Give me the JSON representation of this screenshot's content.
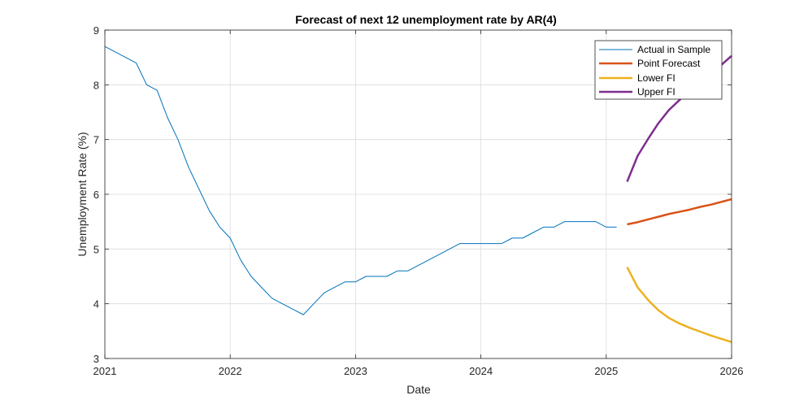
{
  "chart_data": {
    "type": "line",
    "title": "Forecast of next 12 unemployment rate by AR(4)",
    "xlabel": "Date",
    "ylabel": "Unemployment Rate (%)",
    "xlim": [
      "2021-01",
      "2026-01"
    ],
    "ylim": [
      3,
      9
    ],
    "x_ticks": [
      "2021",
      "2022",
      "2023",
      "2024",
      "2025",
      "2026"
    ],
    "y_ticks": [
      "3",
      "4",
      "5",
      "6",
      "7",
      "8",
      "9"
    ],
    "grid": true,
    "legend_position": "top-right",
    "series": [
      {
        "name": "Actual in Sample",
        "color": "#0072BD",
        "line_width": "thin",
        "x": [
          "2021-01",
          "2021-02",
          "2021-03",
          "2021-04",
          "2021-05",
          "2021-06",
          "2021-07",
          "2021-08",
          "2021-09",
          "2021-10",
          "2021-11",
          "2021-12",
          "2022-01",
          "2022-02",
          "2022-03",
          "2022-04",
          "2022-05",
          "2022-06",
          "2022-07",
          "2022-08",
          "2022-09",
          "2022-10",
          "2022-11",
          "2022-12",
          "2023-01",
          "2023-02",
          "2023-03",
          "2023-04",
          "2023-05",
          "2023-06",
          "2023-07",
          "2023-08",
          "2023-09",
          "2023-10",
          "2023-11",
          "2023-12",
          "2024-01",
          "2024-02",
          "2024-03",
          "2024-04",
          "2024-05",
          "2024-06",
          "2024-07",
          "2024-08",
          "2024-09",
          "2024-10",
          "2024-11",
          "2024-12",
          "2025-01",
          "2025-02"
        ],
        "y": [
          8.7,
          8.6,
          8.5,
          8.4,
          8.0,
          7.9,
          7.4,
          7.0,
          6.5,
          6.1,
          5.7,
          5.4,
          5.2,
          4.8,
          4.5,
          4.3,
          4.1,
          4.0,
          3.9,
          3.8,
          4.0,
          4.2,
          4.3,
          4.4,
          4.4,
          4.5,
          4.5,
          4.5,
          4.6,
          4.6,
          4.7,
          4.8,
          4.9,
          5.0,
          5.1,
          5.1,
          5.1,
          5.1,
          5.1,
          5.2,
          5.2,
          5.3,
          5.4,
          5.4,
          5.5,
          5.5,
          5.5,
          5.5,
          5.4,
          5.4
        ]
      },
      {
        "name": "Point Forecast",
        "color": "#D95319",
        "line_width": "thick",
        "x": [
          "2025-03",
          "2025-04",
          "2025-05",
          "2025-06",
          "2025-07",
          "2025-08",
          "2025-09",
          "2025-10",
          "2025-11",
          "2025-12",
          "2026-01"
        ],
        "y": [
          5.45,
          5.49,
          5.54,
          5.59,
          5.64,
          5.68,
          5.72,
          5.77,
          5.81,
          5.86,
          5.91
        ]
      },
      {
        "name": "Lower FI",
        "color": "#EDB120",
        "line_width": "thick",
        "x": [
          "2025-03",
          "2025-04",
          "2025-05",
          "2025-06",
          "2025-07",
          "2025-08",
          "2025-09",
          "2025-10",
          "2025-11",
          "2025-12",
          "2026-01"
        ],
        "y": [
          4.67,
          4.3,
          4.07,
          3.88,
          3.74,
          3.64,
          3.56,
          3.49,
          3.42,
          3.36,
          3.3
        ]
      },
      {
        "name": "Upper FI",
        "color": "#7E2F8E",
        "line_width": "thick",
        "x": [
          "2025-03",
          "2025-04",
          "2025-05",
          "2025-06",
          "2025-07",
          "2025-08",
          "2025-09",
          "2025-10",
          "2025-11",
          "2025-12",
          "2026-01"
        ],
        "y": [
          6.23,
          6.7,
          7.01,
          7.3,
          7.54,
          7.72,
          7.88,
          8.05,
          8.2,
          8.36,
          8.53
        ]
      }
    ]
  }
}
